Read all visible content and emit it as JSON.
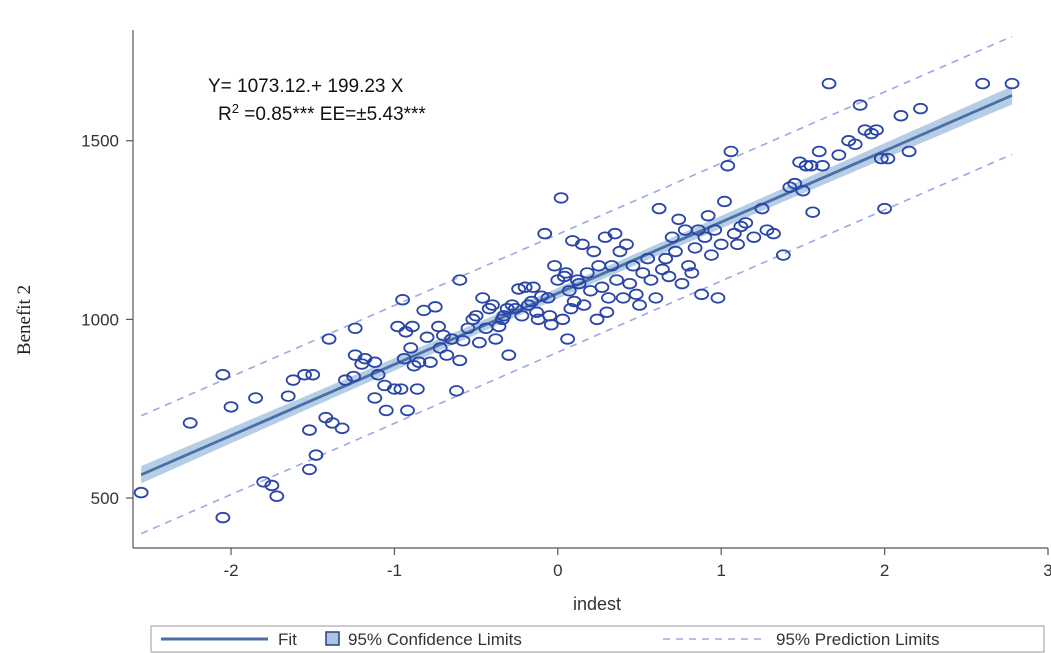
{
  "chart_data": {
    "type": "scatter",
    "xlabel": "indest",
    "ylabel": "Benefit 2",
    "xlim": [
      -2.6,
      3.0
    ],
    "ylim": [
      360,
      1810
    ],
    "xticks": [
      -2,
      -1,
      0,
      1,
      2,
      3
    ],
    "yticks": [
      500,
      1000,
      1500
    ],
    "grid": false,
    "legend_position": "bottom",
    "annotation": {
      "equation": "Y= 1073.12.+ 199.23 X",
      "r2_prefix": "R",
      "r2_sup": "2",
      "r2_suffix": " =0.85*** EE=±5.43***"
    },
    "fit": {
      "intercept": 1073.12,
      "slope": 199.23,
      "x_range": [
        -2.55,
        2.78
      ]
    },
    "confidence_band_halfwidth": 20,
    "prediction_band_halfwidth": 165,
    "legend": {
      "fit": "Fit",
      "confidence": "95% Confidence Limits",
      "prediction": "95% Prediction Limits"
    },
    "colors": {
      "points": "#2a45a8",
      "fit": "#4a6fa5",
      "band": "#a9c4e2",
      "prediction": "#9ea7e0",
      "axis": "#555555"
    },
    "points": [
      [
        -2.55,
        515
      ],
      [
        -2.25,
        710
      ],
      [
        -2.05,
        845
      ],
      [
        -2.0,
        755
      ],
      [
        -2.05,
        445
      ],
      [
        -1.85,
        780
      ],
      [
        -1.8,
        545
      ],
      [
        -1.75,
        535
      ],
      [
        -1.72,
        505
      ],
      [
        -1.65,
        785
      ],
      [
        -1.62,
        830
      ],
      [
        -1.55,
        845
      ],
      [
        -1.5,
        845
      ],
      [
        -1.52,
        690
      ],
      [
        -1.52,
        580
      ],
      [
        -1.48,
        620
      ],
      [
        -1.4,
        945
      ],
      [
        -1.42,
        725
      ],
      [
        -1.38,
        710
      ],
      [
        -1.32,
        695
      ],
      [
        -1.3,
        830
      ],
      [
        -1.25,
        840
      ],
      [
        -1.24,
        975
      ],
      [
        -1.24,
        900
      ],
      [
        -1.2,
        875
      ],
      [
        -1.18,
        890
      ],
      [
        -1.12,
        880
      ],
      [
        -1.1,
        845
      ],
      [
        -1.12,
        780
      ],
      [
        -1.06,
        815
      ],
      [
        -1.05,
        745
      ],
      [
        -1.0,
        805
      ],
      [
        -0.98,
        980
      ],
      [
        -0.96,
        805
      ],
      [
        -0.95,
        1055
      ],
      [
        -0.94,
        890
      ],
      [
        -0.93,
        965
      ],
      [
        -0.92,
        745
      ],
      [
        -0.9,
        920
      ],
      [
        -0.89,
        980
      ],
      [
        -0.88,
        870
      ],
      [
        -0.86,
        805
      ],
      [
        -0.85,
        880
      ],
      [
        -0.82,
        1025
      ],
      [
        -0.8,
        950
      ],
      [
        -0.78,
        880
      ],
      [
        -0.75,
        1035
      ],
      [
        -0.73,
        980
      ],
      [
        -0.72,
        920
      ],
      [
        -0.7,
        955
      ],
      [
        -0.68,
        900
      ],
      [
        -0.65,
        945
      ],
      [
        -0.62,
        800
      ],
      [
        -0.6,
        885
      ],
      [
        -0.6,
        1110
      ],
      [
        -0.58,
        940
      ],
      [
        -0.55,
        975
      ],
      [
        -0.52,
        1000
      ],
      [
        -0.5,
        1010
      ],
      [
        -0.48,
        935
      ],
      [
        -0.46,
        1060
      ],
      [
        -0.44,
        975
      ],
      [
        -0.42,
        1030
      ],
      [
        -0.4,
        1040
      ],
      [
        -0.38,
        945
      ],
      [
        -0.36,
        980
      ],
      [
        -0.34,
        1000
      ],
      [
        -0.33,
        1010
      ],
      [
        -0.31,
        1030
      ],
      [
        -0.3,
        900
      ],
      [
        -0.28,
        1040
      ],
      [
        -0.26,
        1030
      ],
      [
        -0.24,
        1085
      ],
      [
        -0.22,
        1010
      ],
      [
        -0.2,
        1090
      ],
      [
        -0.18,
        1040
      ],
      [
        -0.16,
        1050
      ],
      [
        -0.15,
        1090
      ],
      [
        -0.13,
        1020
      ],
      [
        -0.12,
        1000
      ],
      [
        -0.1,
        1065
      ],
      [
        -0.08,
        1240
      ],
      [
        -0.06,
        1060
      ],
      [
        -0.05,
        1010
      ],
      [
        -0.04,
        985
      ],
      [
        -0.02,
        1150
      ],
      [
        0.0,
        1110
      ],
      [
        0.02,
        1340
      ],
      [
        0.03,
        1000
      ],
      [
        0.04,
        1120
      ],
      [
        0.05,
        1130
      ],
      [
        0.06,
        945
      ],
      [
        0.07,
        1080
      ],
      [
        0.08,
        1030
      ],
      [
        0.09,
        1220
      ],
      [
        0.1,
        1050
      ],
      [
        0.12,
        1110
      ],
      [
        0.13,
        1100
      ],
      [
        0.15,
        1210
      ],
      [
        0.16,
        1040
      ],
      [
        0.18,
        1130
      ],
      [
        0.2,
        1080
      ],
      [
        0.22,
        1190
      ],
      [
        0.24,
        1000
      ],
      [
        0.25,
        1150
      ],
      [
        0.27,
        1090
      ],
      [
        0.29,
        1230
      ],
      [
        0.3,
        1020
      ],
      [
        0.31,
        1060
      ],
      [
        0.33,
        1150
      ],
      [
        0.35,
        1240
      ],
      [
        0.36,
        1110
      ],
      [
        0.38,
        1190
      ],
      [
        0.4,
        1060
      ],
      [
        0.42,
        1210
      ],
      [
        0.44,
        1100
      ],
      [
        0.46,
        1150
      ],
      [
        0.48,
        1070
      ],
      [
        0.5,
        1040
      ],
      [
        0.52,
        1130
      ],
      [
        0.55,
        1170
      ],
      [
        0.57,
        1110
      ],
      [
        0.6,
        1060
      ],
      [
        0.62,
        1310
      ],
      [
        0.64,
        1140
      ],
      [
        0.66,
        1170
      ],
      [
        0.68,
        1120
      ],
      [
        0.7,
        1230
      ],
      [
        0.72,
        1190
      ],
      [
        0.74,
        1280
      ],
      [
        0.76,
        1100
      ],
      [
        0.78,
        1250
      ],
      [
        0.8,
        1150
      ],
      [
        0.82,
        1130
      ],
      [
        0.84,
        1200
      ],
      [
        0.86,
        1250
      ],
      [
        0.88,
        1070
      ],
      [
        0.9,
        1230
      ],
      [
        0.92,
        1290
      ],
      [
        0.94,
        1180
      ],
      [
        0.96,
        1250
      ],
      [
        0.98,
        1060
      ],
      [
        1.0,
        1210
      ],
      [
        1.02,
        1330
      ],
      [
        1.04,
        1430
      ],
      [
        1.06,
        1470
      ],
      [
        1.08,
        1240
      ],
      [
        1.1,
        1210
      ],
      [
        1.12,
        1260
      ],
      [
        1.15,
        1270
      ],
      [
        1.2,
        1230
      ],
      [
        1.25,
        1310
      ],
      [
        1.28,
        1250
      ],
      [
        1.32,
        1240
      ],
      [
        1.38,
        1180
      ],
      [
        1.42,
        1370
      ],
      [
        1.45,
        1380
      ],
      [
        1.48,
        1440
      ],
      [
        1.5,
        1360
      ],
      [
        1.52,
        1430
      ],
      [
        1.55,
        1430
      ],
      [
        1.56,
        1300
      ],
      [
        1.6,
        1470
      ],
      [
        1.62,
        1430
      ],
      [
        1.66,
        1660
      ],
      [
        1.72,
        1460
      ],
      [
        1.78,
        1500
      ],
      [
        1.82,
        1490
      ],
      [
        1.85,
        1600
      ],
      [
        1.88,
        1530
      ],
      [
        1.92,
        1520
      ],
      [
        1.95,
        1530
      ],
      [
        1.98,
        1450
      ],
      [
        2.0,
        1310
      ],
      [
        2.02,
        1450
      ],
      [
        2.1,
        1570
      ],
      [
        2.15,
        1470
      ],
      [
        2.22,
        1590
      ],
      [
        2.6,
        1660
      ],
      [
        2.78,
        1660
      ]
    ]
  }
}
